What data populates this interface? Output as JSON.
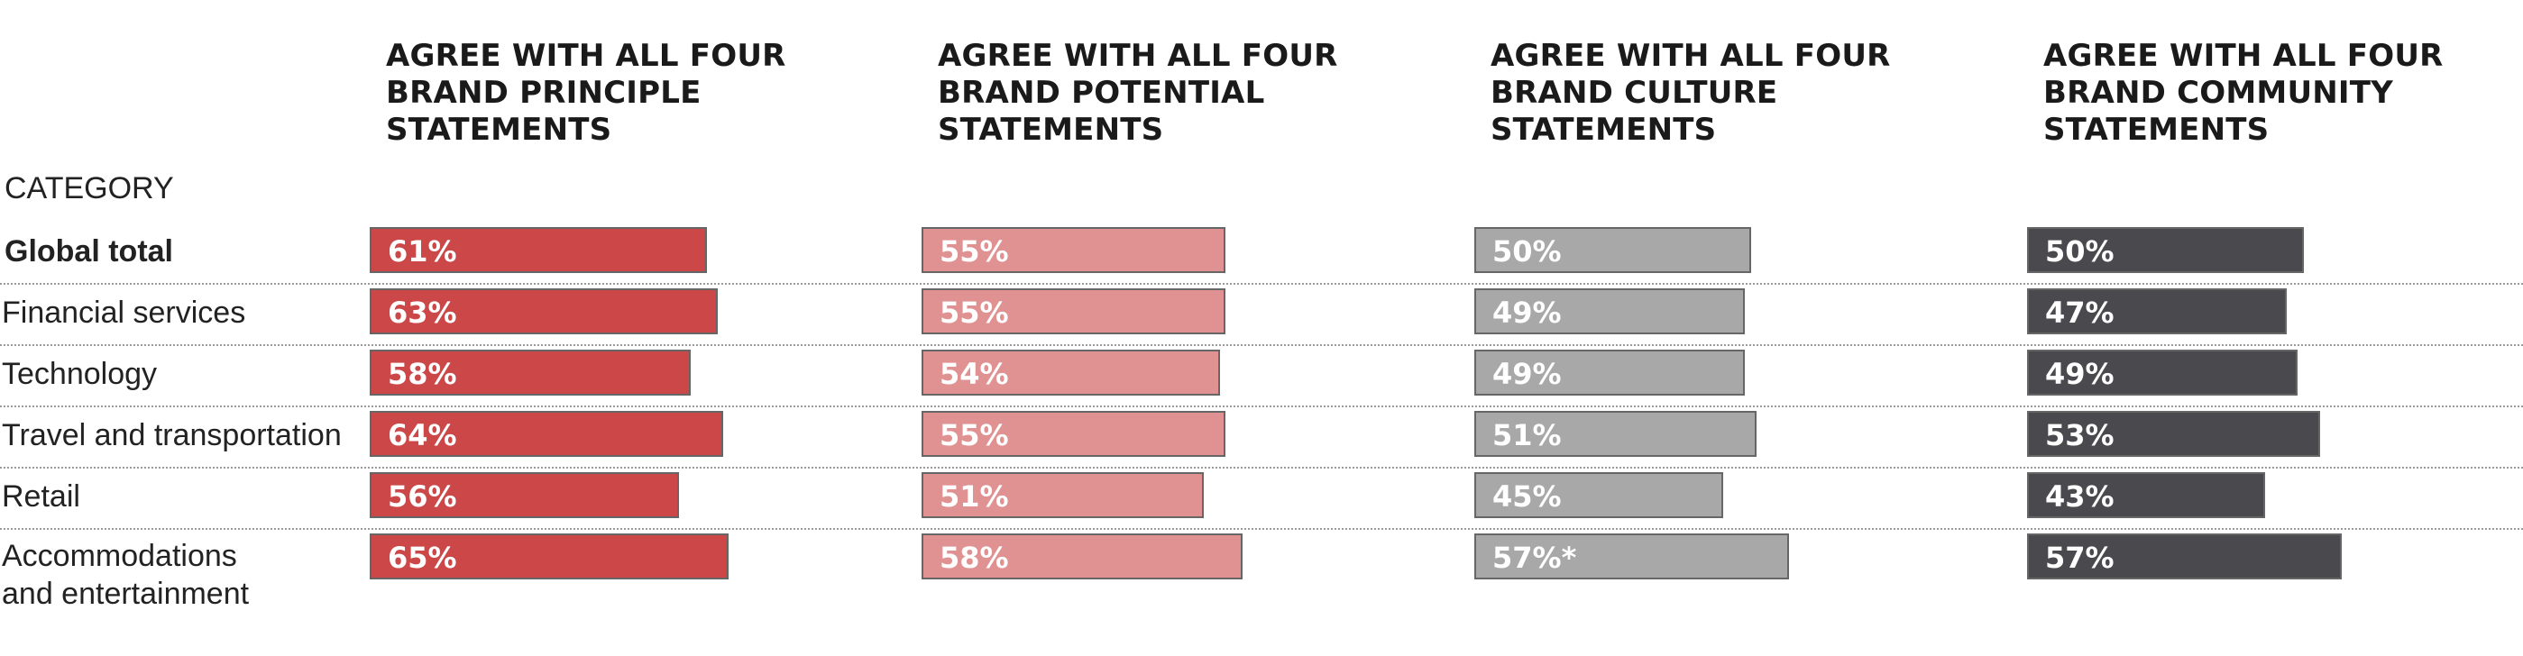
{
  "chart_data": {
    "type": "bar",
    "orientation": "horizontal",
    "category_header": "CATEGORY",
    "categories": [
      "Global total",
      "Financial services",
      "Technology",
      "Travel and transportation",
      "Retail",
      "Accommodations\nand entertainment"
    ],
    "series": [
      {
        "name": "AGREE WITH ALL FOUR\nBRAND PRINCIPLE\nSTATEMENTS",
        "color": "#cc4848",
        "values": [
          61,
          63,
          58,
          64,
          56,
          65
        ],
        "labels": [
          "61%",
          "63%",
          "58%",
          "64%",
          "56%",
          "65%"
        ]
      },
      {
        "name": "AGREE WITH ALL FOUR\nBRAND POTENTIAL\nSTATEMENTS",
        "color": "#e09292",
        "values": [
          55,
          55,
          54,
          55,
          51,
          58
        ],
        "labels": [
          "55%",
          "55%",
          "54%",
          "55%",
          "51%",
          "58%"
        ]
      },
      {
        "name": "AGREE WITH ALL FOUR\nBRAND CULTURE\nSTATEMENTS",
        "color": "#a8a8a8",
        "values": [
          50,
          49,
          49,
          51,
          45,
          57
        ],
        "labels": [
          "50%",
          "49%",
          "49%",
          "51%",
          "45%",
          "57%*"
        ]
      },
      {
        "name": "AGREE WITH ALL FOUR\nBRAND COMMUNITY\nSTATEMENTS",
        "color": "#4a4a4e",
        "values": [
          50,
          47,
          49,
          53,
          43,
          57
        ],
        "labels": [
          "50%",
          "47%",
          "49%",
          "53%",
          "43%",
          "57%"
        ]
      }
    ],
    "xlim": [
      0,
      100
    ],
    "grid": false,
    "legend": "none"
  }
}
